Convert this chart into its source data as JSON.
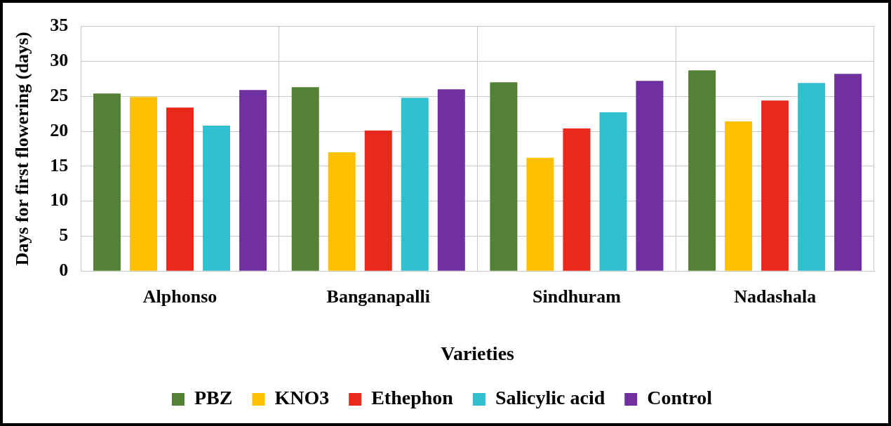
{
  "chart_data": {
    "type": "bar",
    "xlabel": "Varieties",
    "ylabel": "Days for first flowering (days)",
    "categories": [
      "Alphonso",
      "Banganapalli",
      "Sindhuram",
      "Nadashala"
    ],
    "series": [
      {
        "name": "PBZ",
        "color": "#538135",
        "values": [
          25.4,
          26.3,
          27.0,
          28.7
        ]
      },
      {
        "name": "KNO3",
        "color": "#ffc000",
        "values": [
          24.9,
          17.0,
          16.2,
          21.4
        ]
      },
      {
        "name": "Ethephon",
        "color": "#e8291c",
        "values": [
          23.4,
          20.1,
          20.4,
          24.4
        ]
      },
      {
        "name": "Salicylic acid",
        "color": "#30c0d0",
        "values": [
          20.8,
          24.8,
          22.7,
          26.9
        ]
      },
      {
        "name": "Control",
        "color": "#7030a0",
        "values": [
          25.9,
          26.0,
          27.2,
          28.2
        ]
      }
    ],
    "ylim": [
      0,
      35
    ],
    "yticks": [
      0,
      5,
      10,
      15,
      20,
      25,
      30,
      35
    ],
    "grid": true,
    "legend": "bottom"
  }
}
